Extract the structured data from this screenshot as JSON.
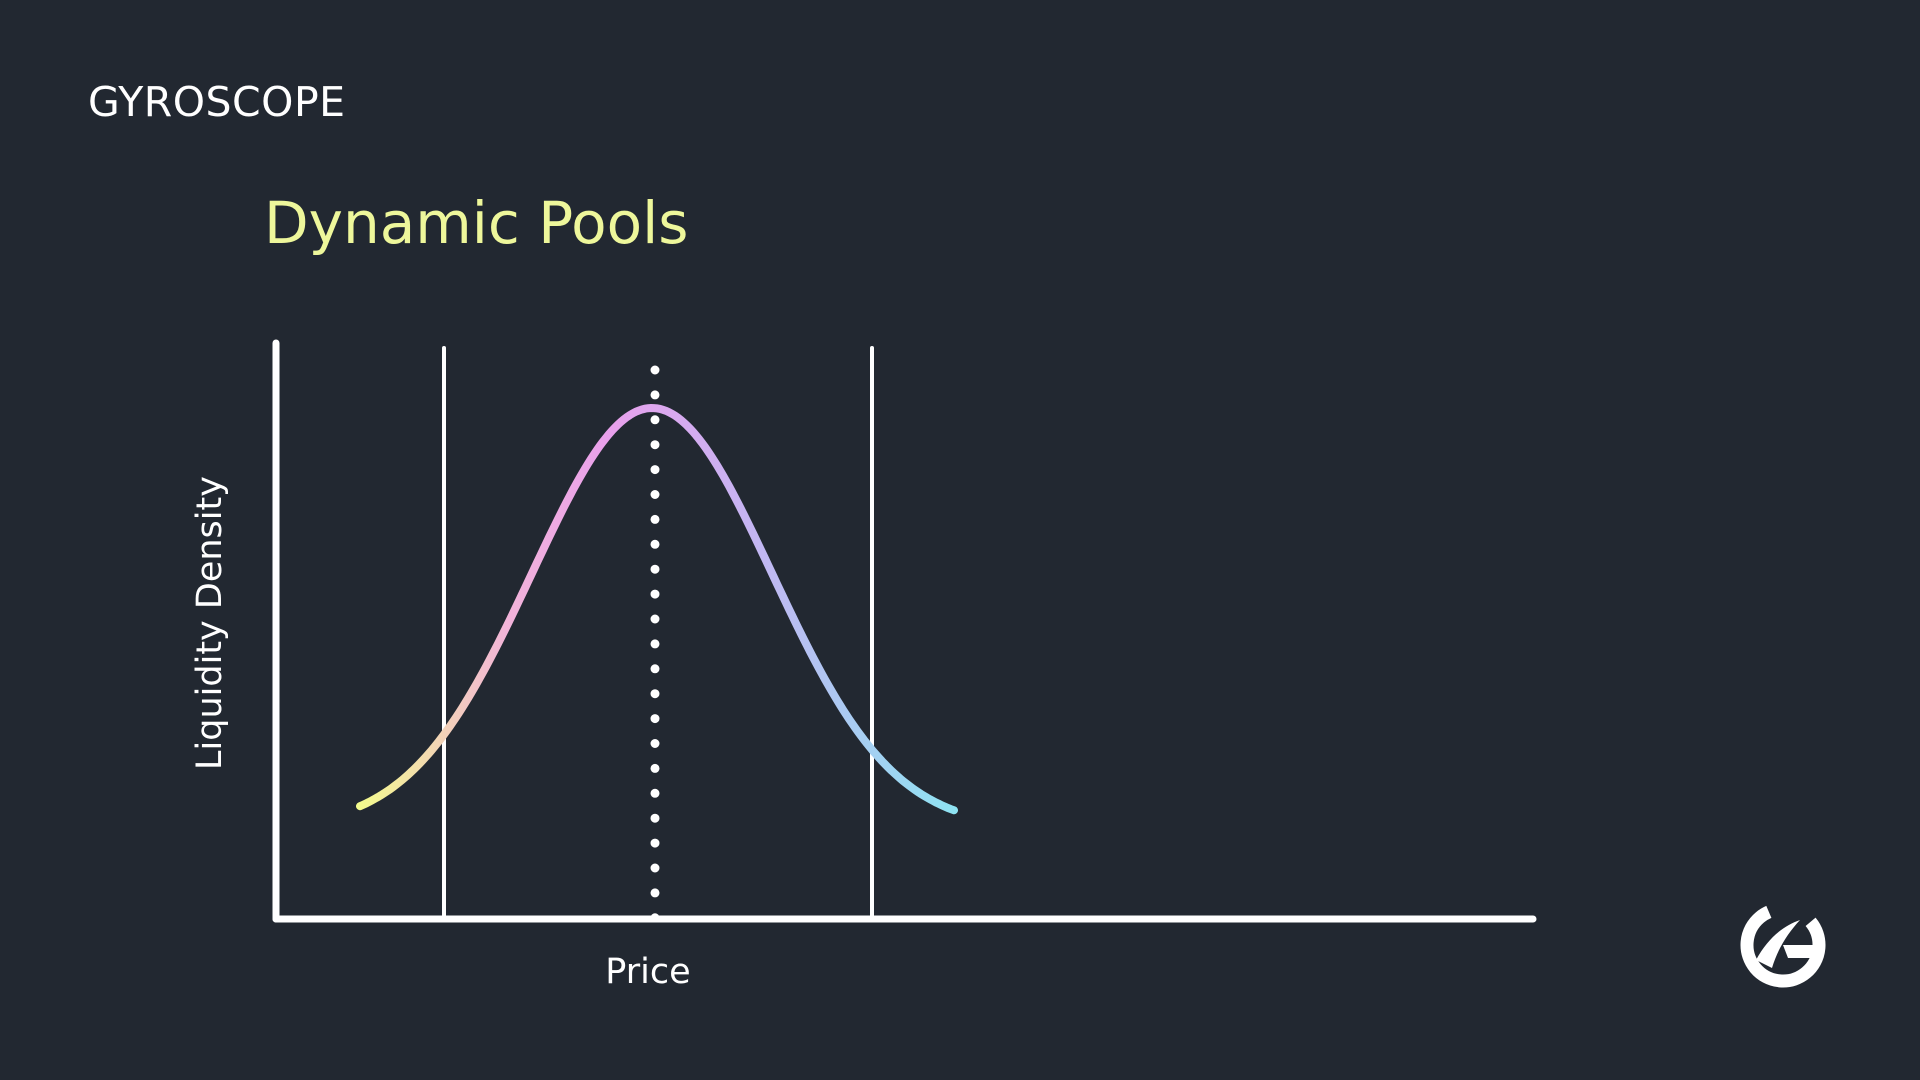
{
  "brand": {
    "name": "Gyroscope",
    "wordmark": "GYROSCOPE"
  },
  "title": "Dynamic Pools",
  "diagram": {
    "y_axis_label": "Liquidity Density",
    "x_axis_label": "Price",
    "curve": {
      "shape": "bell",
      "gradient_colors": [
        "#f4fb8d",
        "#f2b3d9",
        "#e9a0ec",
        "#c6b4f2",
        "#8ee3f2"
      ]
    },
    "range_bounds": {
      "style": "solid vertical lines",
      "color": "#ffffff"
    },
    "current_price_marker": {
      "style": "dotted vertical line",
      "color": "#ffffff"
    }
  },
  "colors": {
    "background": "#222831",
    "title": "#eef79b",
    "foreground": "#ffffff"
  }
}
